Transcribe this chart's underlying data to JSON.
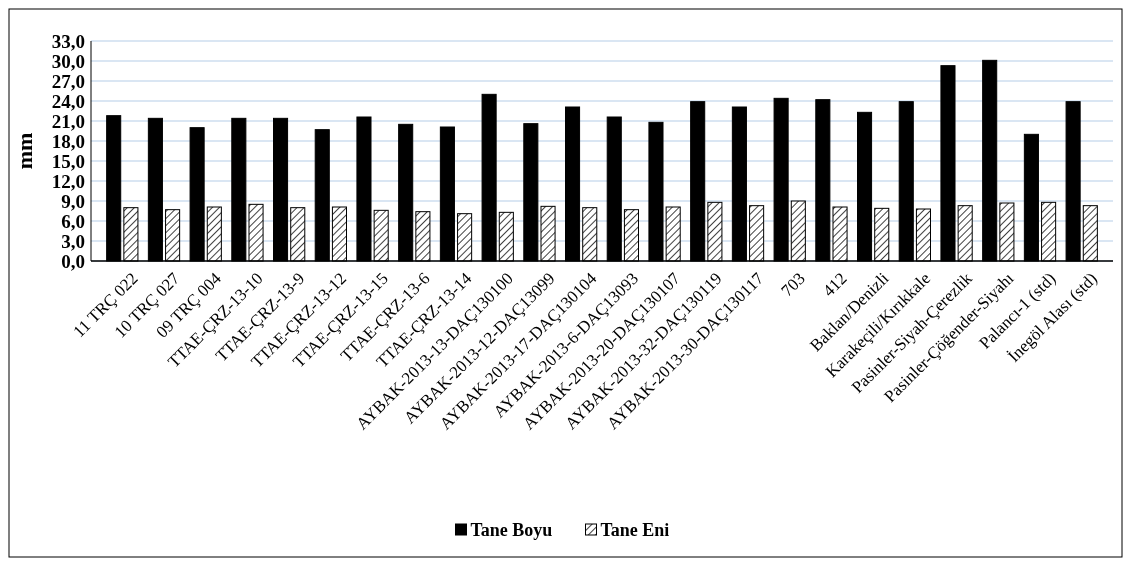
{
  "chart_data": {
    "type": "bar",
    "ylabel": "mm",
    "categories": [
      "11 TRÇ 022",
      "10 TRÇ 027",
      "09 TRÇ 004",
      "TTAE-ÇRZ-13-10",
      "TTAE-ÇRZ-13-9",
      "TTAE-ÇRZ-13-12",
      "TTAE-ÇRZ-13-15",
      "TTAE-ÇRZ-13-6",
      "TTAE-ÇRZ-13-14",
      "AYBAK-2013-13-DAÇ130100",
      "AYBAK-2013-12-DAÇ13099",
      "AYBAK-2013-17-DAÇ130104",
      "AYBAK-2013-6-DAÇ13093",
      "AYBAK-2013-20-DAÇ130107",
      "AYBAK-2013-32-DAÇ130119",
      "AYBAK-2013-30-DAÇ130117",
      "703",
      "412",
      "Baklan/Denizli",
      "Karakeçili/Kırıkkale",
      "Pasinler-Siyah-Çerezlik",
      "Pasinler-Çöğender-Siyahı",
      "Palancı-1 (std)",
      "İnegöl Alası (std)"
    ],
    "series": [
      {
        "name": "Tane Boyu",
        "color": "#000000",
        "values": [
          21.8,
          21.4,
          20.0,
          21.4,
          21.4,
          19.7,
          21.6,
          20.5,
          20.1,
          25.0,
          20.6,
          23.1,
          21.6,
          20.8,
          23.9,
          23.1,
          24.4,
          24.2,
          22.3,
          23.9,
          29.3,
          30.1,
          19.0,
          23.9
        ]
      },
      {
        "name": "Tane Eni",
        "color": "#000000",
        "values": [
          8.0,
          7.7,
          8.1,
          8.5,
          8.0,
          8.1,
          7.6,
          7.4,
          7.1,
          7.3,
          8.2,
          8.0,
          7.7,
          8.1,
          8.8,
          8.3,
          9.0,
          8.1,
          7.9,
          7.8,
          8.3,
          8.7,
          8.8,
          8.3
        ]
      }
    ],
    "ylim": [
      0,
      33
    ],
    "yticks": [
      {
        "value": 0,
        "label": "0,0"
      },
      {
        "value": 3,
        "label": "3,0"
      },
      {
        "value": 6,
        "label": "6,0"
      },
      {
        "value": 9,
        "label": "9,0"
      },
      {
        "value": 12,
        "label": "12,0"
      },
      {
        "value": 15,
        "label": "15,0"
      },
      {
        "value": 18,
        "label": "18,0"
      },
      {
        "value": 21,
        "label": "21,0"
      },
      {
        "value": 24,
        "label": "24,0"
      },
      {
        "value": 27,
        "label": "27,0"
      },
      {
        "value": 30,
        "label": "30,0"
      },
      {
        "value": 33,
        "label": "33,0"
      }
    ],
    "grid": "y",
    "legend": "bottom"
  }
}
